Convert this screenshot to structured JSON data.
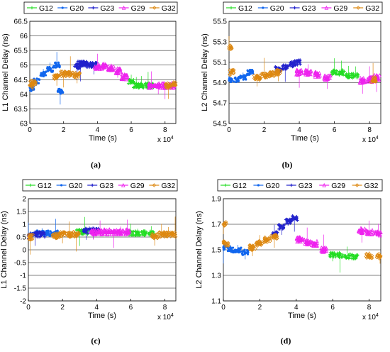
{
  "legend_labels": [
    "G12",
    "G20",
    "G23",
    "G29",
    "G32"
  ],
  "colors": {
    "G12": "#22dd22",
    "G20": "#1166ee",
    "G23": "#2222cc",
    "G29": "#ee22ee",
    "G32": "#dd8811"
  },
  "chart_data": [
    {
      "type": "scatter",
      "panel_label": "(a)",
      "xlabel": "Time (s)",
      "ylabel": "L1 Channel Delay (ns)",
      "x_multiplier_label": "x 10^4",
      "xlim": [
        0,
        8.64
      ],
      "ylim": [
        63,
        66.5
      ],
      "xticks": [
        0,
        2,
        4,
        6,
        8
      ],
      "yticks": [
        63,
        63.5,
        64,
        64.5,
        65,
        65.5,
        66,
        66.5
      ],
      "ytick_labels": [
        "63",
        "63.5",
        "64",
        "64.5",
        "65",
        "65.5",
        "66",
        "66.5"
      ],
      "grid": true,
      "legend_position": "top",
      "series": [
        {
          "name": "G12",
          "x": [
            6.0,
            6.3,
            6.6,
            7.0,
            7.2
          ],
          "y": [
            64.45,
            64.3,
            64.3,
            64.3,
            64.3
          ]
        },
        {
          "name": "G20",
          "x": [
            0.1,
            0.4,
            0.8,
            1.2,
            1.6,
            1.8
          ],
          "y": [
            64.2,
            64.45,
            64.7,
            64.85,
            65.0,
            64.1
          ]
        },
        {
          "name": "G23",
          "x": [
            2.8,
            3.0,
            3.2,
            3.5,
            3.8
          ],
          "y": [
            64.95,
            65.05,
            65.05,
            65.0,
            65.0
          ]
        },
        {
          "name": "G29",
          "x": [
            4.0,
            4.4,
            4.8,
            5.2,
            5.6,
            7.2,
            7.6,
            8.0,
            8.4
          ],
          "y": [
            64.95,
            64.95,
            64.9,
            64.8,
            64.6,
            64.3,
            64.3,
            64.3,
            64.3
          ]
        },
        {
          "name": "G32",
          "x": [
            0.0,
            0.2,
            1.6,
            2.0,
            2.4,
            2.8,
            8.2,
            8.6
          ],
          "y": [
            64.3,
            64.4,
            64.6,
            64.7,
            64.7,
            64.65,
            64.3,
            64.35
          ]
        }
      ]
    },
    {
      "type": "scatter",
      "panel_label": "(b)",
      "xlabel": "Time (s)",
      "ylabel": "L2 Channel Delay (ns)",
      "x_multiplier_label": "x 10^4",
      "xlim": [
        0,
        8.64
      ],
      "ylim": [
        54.5,
        55.5
      ],
      "xticks": [
        0,
        2,
        4,
        6,
        8
      ],
      "yticks": [
        54.5,
        54.7,
        54.9,
        55.1,
        55.3,
        55.5
      ],
      "ytick_labels": [
        "54.5",
        "54.7",
        "54.9",
        "55.1",
        "55.3",
        "55.5"
      ],
      "grid": true,
      "legend_position": "top",
      "series": [
        {
          "name": "G12",
          "x": [
            6.0,
            6.4,
            6.8,
            7.2
          ],
          "y": [
            55.0,
            55.0,
            54.97,
            54.97
          ]
        },
        {
          "name": "G20",
          "x": [
            0.0,
            0.4,
            0.8,
            1.2
          ],
          "y": [
            54.92,
            54.93,
            54.95,
            55.0
          ]
        },
        {
          "name": "G23",
          "x": [
            2.8,
            3.2,
            3.6,
            3.9
          ],
          "y": [
            55.03,
            55.05,
            55.08,
            55.1
          ]
        },
        {
          "name": "G29",
          "x": [
            4.0,
            4.5,
            5.0,
            5.6,
            7.6,
            8.0,
            8.4
          ],
          "y": [
            55.0,
            55.0,
            54.98,
            54.95,
            54.92,
            54.93,
            54.95
          ]
        },
        {
          "name": "G32",
          "x": [
            0.0,
            0.1,
            1.6,
            2.0,
            2.4,
            2.8,
            8.2
          ],
          "y": [
            55.25,
            55.0,
            54.95,
            54.97,
            54.98,
            55.0,
            54.93
          ]
        }
      ]
    },
    {
      "type": "scatter",
      "panel_label": "(c)",
      "xlabel": "Time (s)",
      "ylabel": "L1 Channel Delay (ns)",
      "x_multiplier_label": "x 10^4",
      "xlim": [
        0,
        8.64
      ],
      "ylim": [
        -2,
        2
      ],
      "xticks": [
        0,
        2,
        4,
        6,
        8
      ],
      "yticks": [
        -2,
        -1.5,
        -1,
        -0.5,
        0,
        0.5,
        1,
        1.5,
        2
      ],
      "ytick_labels": [
        "-2",
        "-1.5",
        "-1",
        "-0.5",
        "0",
        "0.5",
        "1",
        "1.5",
        "2"
      ],
      "grid": true,
      "legend_position": "top",
      "series": [
        {
          "name": "G12",
          "x": [
            3.0,
            3.3,
            6.0,
            6.4,
            6.8,
            7.2
          ],
          "y": [
            0.7,
            0.7,
            0.65,
            0.65,
            0.65,
            0.65
          ]
        },
        {
          "name": "G20",
          "x": [
            0.0,
            0.4,
            0.8,
            1.2,
            1.6
          ],
          "y": [
            0.6,
            0.65,
            0.65,
            0.65,
            0.65
          ]
        },
        {
          "name": "G23",
          "x": [
            0.0,
            0.4,
            0.8,
            3.4,
            3.8,
            4.0
          ],
          "y": [
            0.55,
            0.6,
            0.6,
            0.75,
            0.75,
            0.75
          ]
        },
        {
          "name": "G29",
          "x": [
            3.8,
            4.2,
            4.6,
            5.0,
            5.4,
            5.8
          ],
          "y": [
            0.7,
            0.7,
            0.7,
            0.7,
            0.7,
            0.7
          ]
        },
        {
          "name": "G32",
          "x": [
            0.1,
            1.6,
            2.0,
            2.4,
            2.8,
            7.4,
            7.8,
            8.2,
            8.6
          ],
          "y": [
            0.5,
            0.55,
            0.6,
            0.6,
            0.6,
            0.55,
            0.6,
            0.6,
            0.6
          ]
        }
      ]
    },
    {
      "type": "scatter",
      "panel_label": "(d)",
      "xlabel": "Time (s)",
      "ylabel": "L2 Channel Delay (ns)",
      "x_multiplier_label": "x 10^4",
      "xlim": [
        0,
        8.64
      ],
      "ylim": [
        1.1,
        1.9
      ],
      "xticks": [
        0,
        2,
        4,
        6,
        8
      ],
      "yticks": [
        1.1,
        1.3,
        1.5,
        1.7,
        1.9
      ],
      "ytick_labels": [
        "1.1",
        "1.3",
        "1.5",
        "1.7",
        "1.9"
      ],
      "grid": true,
      "legend_position": "top",
      "series": [
        {
          "name": "G12",
          "x": [
            6.0,
            6.4,
            6.8,
            7.2
          ],
          "y": [
            1.46,
            1.46,
            1.45,
            1.45
          ]
        },
        {
          "name": "G20",
          "x": [
            0.0,
            0.4,
            0.8,
            1.2
          ],
          "y": [
            1.52,
            1.5,
            1.5,
            1.48
          ]
        },
        {
          "name": "G23",
          "x": [
            2.8,
            3.2,
            3.6,
            3.9
          ],
          "y": [
            1.62,
            1.68,
            1.72,
            1.75
          ]
        },
        {
          "name": "G29",
          "x": [
            4.2,
            4.6,
            5.0,
            5.5,
            7.6,
            8.0,
            8.5
          ],
          "y": [
            1.58,
            1.56,
            1.55,
            1.5,
            1.65,
            1.64,
            1.63
          ]
        },
        {
          "name": "G32",
          "x": [
            0.0,
            0.1,
            1.6,
            2.0,
            2.4,
            2.8,
            8.0,
            8.6
          ],
          "y": [
            1.7,
            1.55,
            1.52,
            1.55,
            1.58,
            1.6,
            1.45,
            1.45
          ]
        }
      ]
    }
  ]
}
